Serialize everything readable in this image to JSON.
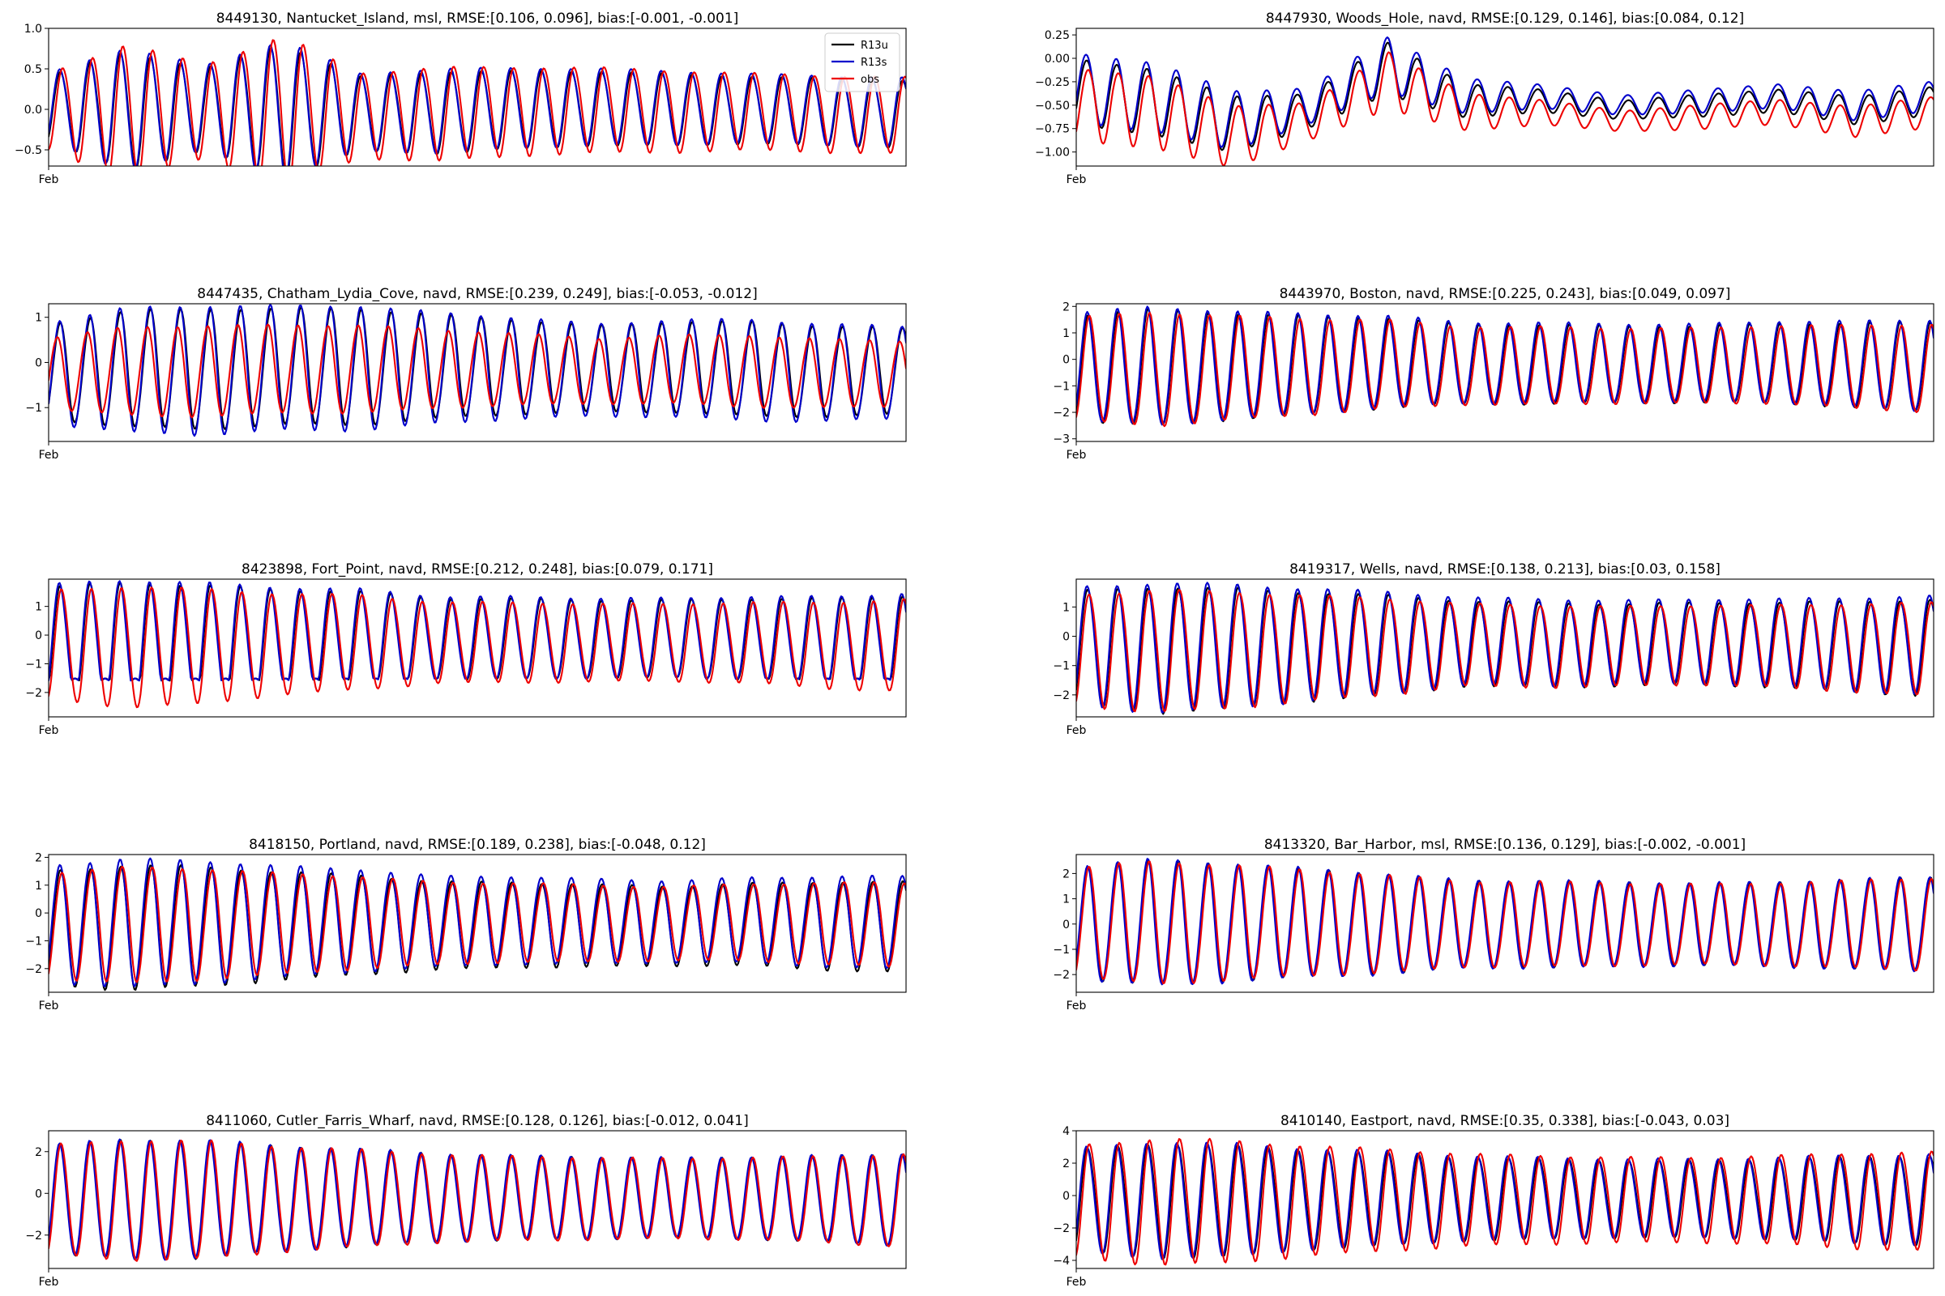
{
  "figure": {
    "x_tick_label": "Feb"
  },
  "colors": {
    "R13u": "#000000",
    "R13s": "#0000cc",
    "obs": "#ee0000"
  },
  "legend": {
    "placement": "top-right",
    "shown_in_panel": 0,
    "entries": [
      "R13u",
      "R13s",
      "obs"
    ]
  },
  "chart_data": [
    {
      "type": "line",
      "title": "8449130, Nantucket_Island, msl, RMSE:[0.106, 0.096], bias:[-0.001, -0.001]",
      "ylim": [
        -0.7,
        1.0
      ],
      "yticks": [
        -0.5,
        0.0,
        0.5,
        1.0
      ],
      "ytick_labels": [
        "−0.5",
        "0.0",
        "0.5",
        "1.0"
      ],
      "cycles": 28.5,
      "phase": -0.9,
      "amplitude": [
        0.45,
        0.8,
        0.55,
        0.9,
        0.5,
        0.55,
        0.52,
        0.5,
        0.48,
        0.45,
        0.45,
        0.45
      ],
      "offset": [
        0.0,
        0.0,
        0.0,
        0.0,
        -0.05,
        -0.03,
        0.0,
        0.02,
        0.0,
        0.0,
        -0.03,
        -0.05
      ],
      "series": [
        {
          "name": "R13u",
          "amp_scale": 0.92,
          "offset": 0.0,
          "lag": 0.0
        },
        {
          "name": "R13s",
          "amp_scale": 0.95,
          "offset": 0.02,
          "lag": 0.02
        },
        {
          "name": "obs",
          "amp_scale": 1.05,
          "offset": -0.02,
          "lag": -0.08
        }
      ]
    },
    {
      "type": "line",
      "title": "8447930, Woods_Hole, navd, RMSE:[0.129, 0.146], bias:[0.084, 0.12]",
      "ylim": [
        -1.15,
        0.32
      ],
      "yticks": [
        -1.0,
        -0.75,
        -0.5,
        -0.25,
        0.0,
        0.25
      ],
      "ytick_labels": [
        "−1.00",
        "−0.75",
        "−0.50",
        "−0.25",
        "0.00",
        "0.25"
      ],
      "cycles": 28.5,
      "phase": -0.6,
      "amplitude": [
        0.35,
        0.35,
        0.3,
        0.18,
        0.28,
        0.18,
        0.12,
        0.1,
        0.12,
        0.12,
        0.15,
        0.15
      ],
      "offset": [
        -0.35,
        -0.45,
        -0.7,
        -0.55,
        -0.1,
        -0.45,
        -0.45,
        -0.55,
        -0.5,
        -0.45,
        -0.55,
        -0.45
      ],
      "series": [
        {
          "name": "R13u",
          "amp_scale": 1.0,
          "offset": 0.0,
          "lag": 0.0
        },
        {
          "name": "R13s",
          "amp_scale": 1.05,
          "offset": 0.05,
          "lag": 0.02
        },
        {
          "name": "obs",
          "amp_scale": 1.1,
          "offset": -0.12,
          "lag": -0.05
        }
      ]
    },
    {
      "type": "line",
      "title": "8447435, Chatham_Lydia_Cove, navd, RMSE:[0.239, 0.249], bias:[-0.053, -0.012]",
      "ylim": [
        -1.75,
        1.3
      ],
      "yticks": [
        -1,
        0,
        1
      ],
      "ytick_labels": [
        "−1",
        "0",
        "1"
      ],
      "cycles": 28.5,
      "phase": -0.8,
      "amplitude": [
        1.1,
        1.35,
        1.4,
        1.35,
        1.35,
        1.2,
        1.1,
        1.0,
        1.05,
        1.1,
        1.05,
        1.0
      ],
      "offset": [
        -0.2,
        -0.15,
        -0.15,
        -0.1,
        -0.1,
        -0.1,
        -0.1,
        -0.15,
        -0.1,
        -0.15,
        -0.2,
        -0.2
      ],
      "series": [
        {
          "name": "R13u",
          "amp_scale": 0.95,
          "offset": 0.0,
          "lag": 0.0
        },
        {
          "name": "R13s",
          "amp_scale": 1.02,
          "offset": -0.03,
          "lag": 0.02
        },
        {
          "name": "obs",
          "amp_scale": 0.72,
          "offset": -0.05,
          "lag": 0.1
        }
      ]
    },
    {
      "type": "line",
      "title": "8443970, Boston, navd, RMSE:[0.225, 0.243], bias:[0.049, 0.097]",
      "ylim": [
        -3.1,
        2.1
      ],
      "yticks": [
        -3,
        -2,
        -1,
        0,
        1,
        2
      ],
      "ytick_labels": [
        "−3",
        "−2",
        "−1",
        "0",
        "1",
        "2"
      ],
      "cycles": 28.5,
      "phase": -0.85,
      "amplitude": [
        2.0,
        2.2,
        2.0,
        1.85,
        1.7,
        1.5,
        1.5,
        1.45,
        1.45,
        1.5,
        1.6,
        1.7
      ],
      "offset": [
        -0.4,
        -0.4,
        -0.35,
        -0.3,
        -0.2,
        -0.25,
        -0.25,
        -0.25,
        -0.25,
        -0.2,
        -0.3,
        -0.35
      ],
      "series": [
        {
          "name": "R13u",
          "amp_scale": 1.0,
          "offset": 0.0,
          "lag": 0.0
        },
        {
          "name": "R13s",
          "amp_scale": 1.02,
          "offset": 0.05,
          "lag": 0.02
        },
        {
          "name": "obs",
          "amp_scale": 0.98,
          "offset": -0.05,
          "lag": -0.05
        }
      ]
    },
    {
      "type": "line",
      "title": "8423898, Fort_Point, navd, RMSE:[0.212, 0.248], bias:[0.079, 0.171]",
      "ylim": [
        -2.85,
        1.95
      ],
      "yticks": [
        -2,
        -1,
        0,
        1
      ],
      "ytick_labels": [
        "−2",
        "−1",
        "0",
        "1"
      ],
      "cycles": 28.5,
      "phase": -0.85,
      "amplitude": [
        1.9,
        2.1,
        2.0,
        1.75,
        1.65,
        1.4,
        1.4,
        1.35,
        1.35,
        1.4,
        1.5,
        1.6
      ],
      "offset": [
        -0.3,
        -0.35,
        -0.35,
        -0.25,
        -0.2,
        -0.2,
        -0.2,
        -0.2,
        -0.2,
        -0.2,
        -0.3,
        -0.3
      ],
      "series": [
        {
          "name": "R13u",
          "amp_scale": 1.0,
          "offset": 0.05,
          "lag": 0.0,
          "floor": -1.55
        },
        {
          "name": "R13s",
          "amp_scale": 1.03,
          "offset": 0.08,
          "lag": 0.02,
          "floor": -1.55
        },
        {
          "name": "obs",
          "amp_scale": 1.0,
          "offset": -0.08,
          "lag": -0.05
        }
      ]
    },
    {
      "type": "line",
      "title": "8419317, Wells, navd, RMSE:[0.138, 0.213], bias:[0.03, 0.158]",
      "ylim": [
        -2.75,
        1.95
      ],
      "yticks": [
        -2,
        -1,
        0,
        1
      ],
      "ytick_labels": [
        "−2",
        "−1",
        "0",
        "1"
      ],
      "cycles": 28.5,
      "phase": -0.85,
      "amplitude": [
        1.95,
        2.15,
        2.05,
        1.85,
        1.7,
        1.45,
        1.45,
        1.4,
        1.4,
        1.45,
        1.55,
        1.65
      ],
      "offset": [
        -0.35,
        -0.4,
        -0.35,
        -0.3,
        -0.25,
        -0.2,
        -0.25,
        -0.25,
        -0.2,
        -0.25,
        -0.3,
        -0.35
      ],
      "series": [
        {
          "name": "R13u",
          "amp_scale": 1.0,
          "offset": 0.0,
          "lag": 0.0
        },
        {
          "name": "R13s",
          "amp_scale": 1.03,
          "offset": 0.08,
          "lag": 0.02
        },
        {
          "name": "obs",
          "amp_scale": 0.97,
          "offset": -0.05,
          "lag": -0.05
        }
      ]
    },
    {
      "type": "line",
      "title": "8418150, Portland, navd, RMSE:[0.189, 0.238], bias:[-0.048, 0.12]",
      "ylim": [
        -2.85,
        2.1
      ],
      "yticks": [
        -2,
        -1,
        0,
        1,
        2
      ],
      "ytick_labels": [
        "−2",
        "−1",
        "0",
        "1",
        "2"
      ],
      "cycles": 28.5,
      "phase": -0.85,
      "amplitude": [
        2.0,
        2.2,
        2.1,
        1.9,
        1.75,
        1.55,
        1.5,
        1.45,
        1.4,
        1.45,
        1.55,
        1.6
      ],
      "offset": [
        -0.4,
        -0.4,
        -0.35,
        -0.35,
        -0.3,
        -0.35,
        -0.3,
        -0.35,
        -0.35,
        -0.3,
        -0.35,
        -0.4
      ],
      "series": [
        {
          "name": "R13u",
          "amp_scale": 1.02,
          "offset": -0.08,
          "lag": 0.0
        },
        {
          "name": "R13s",
          "amp_scale": 1.05,
          "offset": 0.08,
          "lag": 0.02
        },
        {
          "name": "obs",
          "amp_scale": 0.95,
          "offset": 0.0,
          "lag": -0.05
        }
      ]
    },
    {
      "type": "line",
      "title": "8413320, Bar_Harbor, msl, RMSE:[0.136, 0.129], bias:[-0.002, -0.001]",
      "ylim": [
        -2.7,
        2.75
      ],
      "yticks": [
        -2,
        -1,
        0,
        1,
        2
      ],
      "ytick_labels": [
        "−2",
        "−1",
        "0",
        "1",
        "2"
      ],
      "cycles": 28.5,
      "phase": -0.85,
      "amplitude": [
        2.2,
        2.45,
        2.3,
        2.1,
        1.95,
        1.7,
        1.7,
        1.65,
        1.6,
        1.65,
        1.75,
        1.85
      ],
      "offset": [
        0.0,
        0.0,
        0.0,
        0.0,
        -0.05,
        -0.05,
        -0.05,
        -0.05,
        -0.05,
        -0.05,
        -0.05,
        -0.05
      ],
      "series": [
        {
          "name": "R13u",
          "amp_scale": 1.0,
          "offset": 0.0,
          "lag": 0.0
        },
        {
          "name": "R13s",
          "amp_scale": 1.02,
          "offset": 0.0,
          "lag": 0.02
        },
        {
          "name": "obs",
          "amp_scale": 0.99,
          "offset": 0.0,
          "lag": -0.03
        }
      ]
    },
    {
      "type": "line",
      "title": "8411060, Cutler_Farris_Wharf, navd, RMSE:[0.128, 0.126], bias:[-0.012, 0.041]",
      "ylim": [
        -3.6,
        3.0
      ],
      "yticks": [
        -2,
        0,
        2
      ],
      "ytick_labels": [
        "−2",
        "0",
        "2"
      ],
      "cycles": 28.5,
      "phase": -0.85,
      "amplitude": [
        2.6,
        2.85,
        2.8,
        2.5,
        2.3,
        2.1,
        2.0,
        1.95,
        1.9,
        1.95,
        2.05,
        2.2
      ],
      "offset": [
        -0.4,
        -0.4,
        -0.4,
        -0.35,
        -0.3,
        -0.3,
        -0.3,
        -0.3,
        -0.3,
        -0.3,
        -0.35,
        -0.4
      ],
      "series": [
        {
          "name": "R13u",
          "amp_scale": 1.0,
          "offset": 0.0,
          "lag": 0.0
        },
        {
          "name": "R13s",
          "amp_scale": 1.01,
          "offset": 0.02,
          "lag": 0.02
        },
        {
          "name": "obs",
          "amp_scale": 1.01,
          "offset": -0.02,
          "lag": -0.03
        }
      ]
    },
    {
      "type": "line",
      "title": "8410140, Eastport, navd, RMSE:[0.35, 0.338], bias:[-0.043, 0.03]",
      "ylim": [
        -4.5,
        4.0
      ],
      "yticks": [
        -4,
        -2,
        0,
        2,
        4
      ],
      "ytick_labels": [
        "−4",
        "−2",
        "0",
        "2",
        "4"
      ],
      "cycles": 28.5,
      "phase": -0.85,
      "amplitude": [
        3.3,
        3.7,
        3.6,
        3.2,
        3.0,
        2.7,
        2.6,
        2.5,
        2.5,
        2.6,
        2.8,
        2.9
      ],
      "offset": [
        -0.3,
        -0.3,
        -0.3,
        -0.25,
        -0.2,
        -0.2,
        -0.2,
        -0.2,
        -0.2,
        -0.2,
        -0.25,
        -0.3
      ],
      "series": [
        {
          "name": "R13u",
          "amp_scale": 0.95,
          "offset": 0.0,
          "lag": 0.0
        },
        {
          "name": "R13s",
          "amp_scale": 0.97,
          "offset": 0.05,
          "lag": 0.03
        },
        {
          "name": "obs",
          "amp_scale": 1.05,
          "offset": -0.05,
          "lag": -0.06
        }
      ]
    }
  ]
}
